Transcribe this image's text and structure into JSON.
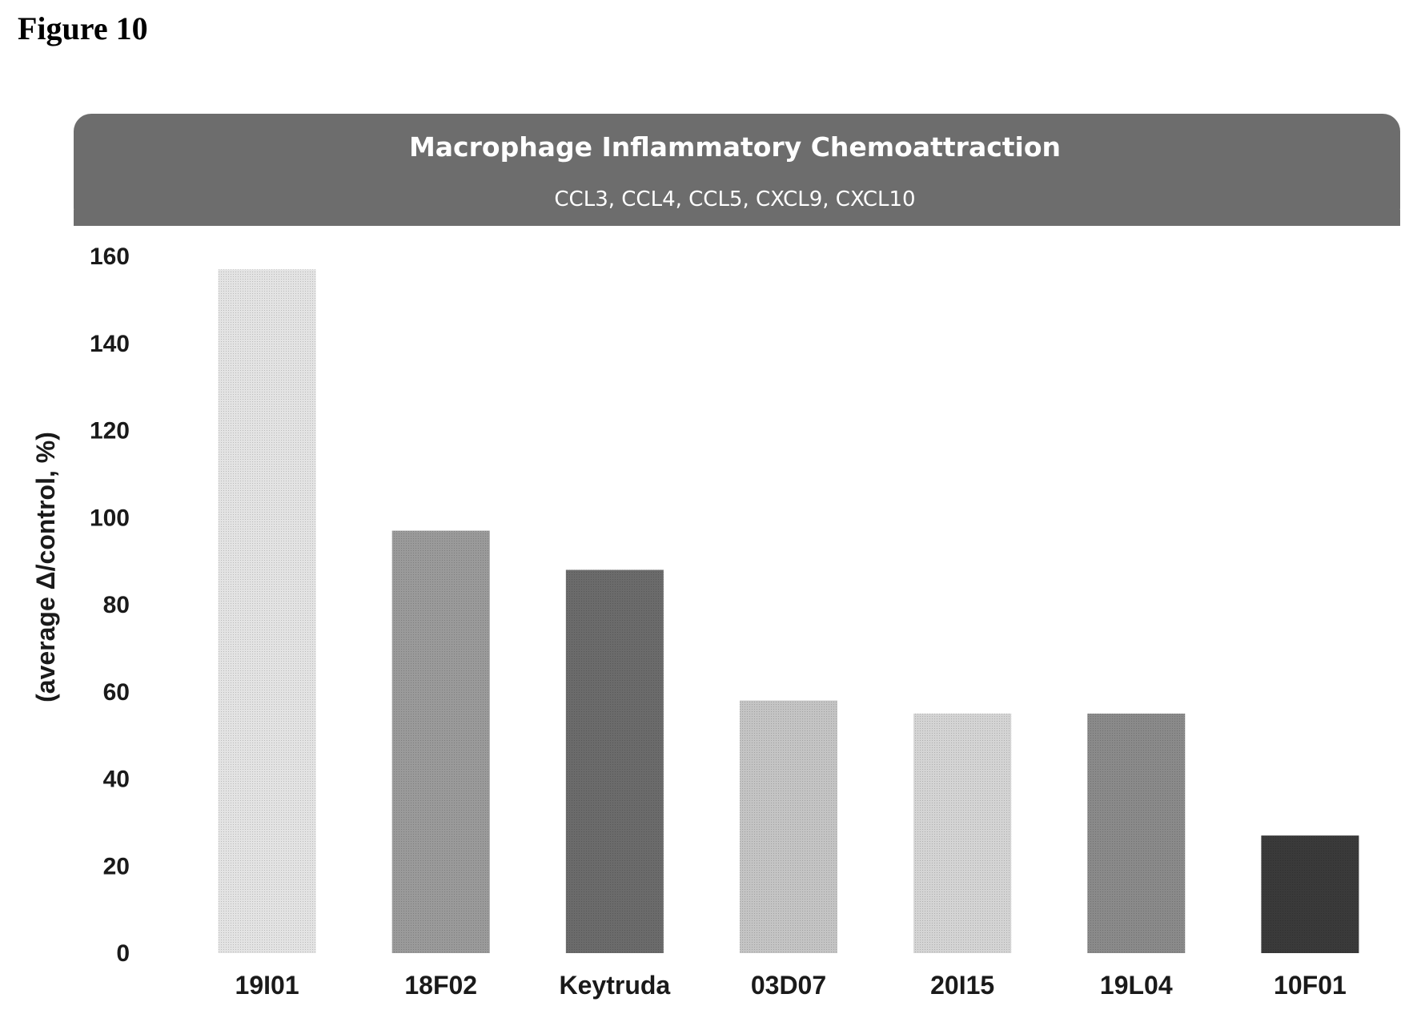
{
  "figure_label": "Figure 10",
  "chart_data": {
    "type": "bar",
    "title": "Macrophage Inflammatory Chemoattraction",
    "subtitle": "CCL3, CCL4, CCL5, CXCL9, CXCL10",
    "ylabel": "(average Δ/control, %)",
    "xlabel": "",
    "ylim": [
      0,
      160
    ],
    "yticks": [
      0,
      20,
      40,
      60,
      80,
      100,
      120,
      140,
      160
    ],
    "categories": [
      "19I01",
      "18F02",
      "Keytruda",
      "03D07",
      "20I15",
      "19L04",
      "10F01"
    ],
    "values": [
      157,
      97,
      88,
      58,
      55,
      55,
      27
    ],
    "bar_colors": [
      "#e3e3e3",
      "#9a9a9a",
      "#6b6b6b",
      "#c4c4c4",
      "#d4d4d4",
      "#8a8a8a",
      "#3a3a3a"
    ],
    "header_color": "#6d6d6d",
    "grid": false,
    "legend": "none"
  }
}
